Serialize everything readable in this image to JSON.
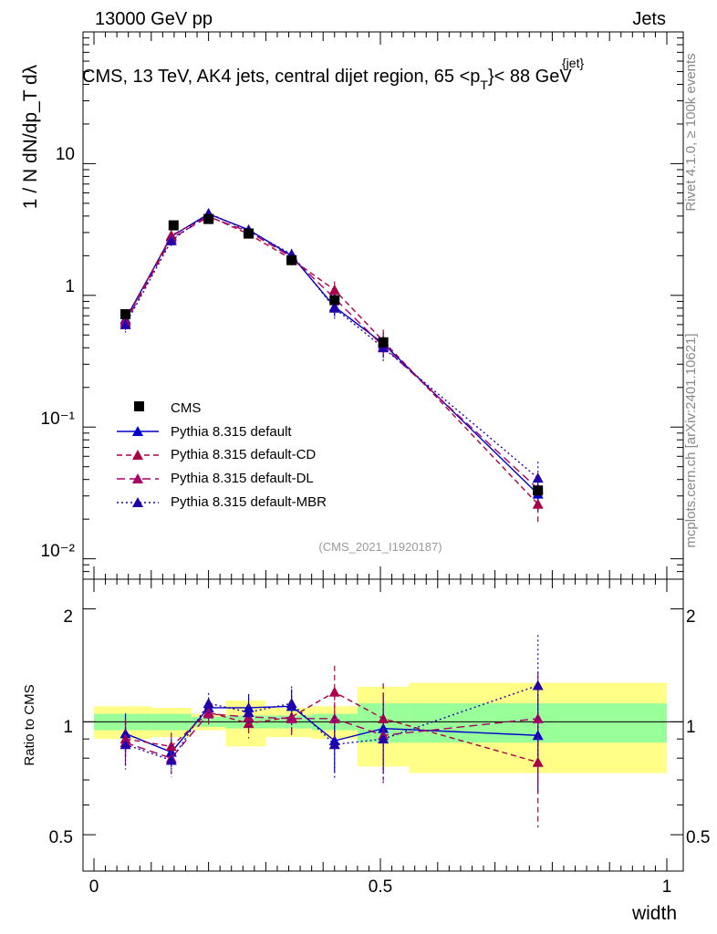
{
  "header": {
    "left": "13000 GeV pp",
    "right": "Jets"
  },
  "plot_title": "CMS, 13 TeV, AK4 jets, central dijet region, 65 <p",
  "plot_title_sup": "{jet}",
  "plot_title_sub": "T",
  "plot_title_tail": "}< 88 GeV",
  "analysis_tag": "(CMS_2021_I1920187)",
  "side_labels": {
    "rivet": "Rivet 4.1.0, ≥ 100k events",
    "mcplots": "mcplots.cern.ch [arXiv:2401.10621]"
  },
  "axes": {
    "main_ylabel": "1 / N  dN/dp_T dλ",
    "ratio_ylabel": "Ratio to CMS",
    "xlabel": "width"
  },
  "legend": {
    "items": [
      {
        "label": "CMS",
        "color": "#000000",
        "marker": "square",
        "dash": "none"
      },
      {
        "label": "Pythia 8.315 default",
        "color": "#0000cc",
        "marker": "triangle",
        "dash": "solid"
      },
      {
        "label": "Pythia 8.315 default-CD",
        "color": "#aa0044",
        "marker": "triangle",
        "dash": "dash"
      },
      {
        "label": "Pythia 8.315 default-DL",
        "color": "#aa0066",
        "marker": "triangle",
        "dash": "longdash"
      },
      {
        "label": "Pythia 8.315 default-MBR",
        "color": "#2200aa",
        "marker": "triangle",
        "dash": "dot"
      }
    ]
  },
  "chart_data": {
    "type": "line",
    "title": "CMS, 13 TeV, AK4 jets, central dijet region, 65 < pT(jet) < 88 GeV",
    "xlabel": "width",
    "ylabel": "1/N dN/dpT dlambda",
    "x": [
      0.055,
      0.135,
      0.2,
      0.27,
      0.345,
      0.42,
      0.505,
      0.775
    ],
    "xlim": [
      0,
      1
    ],
    "ylim": [
      0.007,
      100
    ],
    "yscale": "log",
    "x_ticks": [
      "0",
      "0.5",
      "1"
    ],
    "y_ticks": [
      "10⁻²",
      "10⁻¹",
      "1",
      "10"
    ],
    "ratio_ylim": [
      0.4,
      2.4
    ],
    "ratio_ticks": [
      "0.5",
      "1",
      "2"
    ],
    "bin_edges": [
      0,
      0.1,
      0.17,
      0.23,
      0.3,
      0.38,
      0.46,
      0.55,
      1.0
    ],
    "data": {
      "name": "CMS",
      "values": [
        0.72,
        3.4,
        3.8,
        2.95,
        1.85,
        0.92,
        0.44,
        0.033
      ]
    },
    "band_stat_rel": [
      0.05,
      0.05,
      0.03,
      0.04,
      0.04,
      0.05,
      0.12,
      0.12
    ],
    "band_total_rel": [
      0.1,
      0.09,
      0.05,
      0.14,
      0.09,
      0.1,
      0.24,
      0.27
    ],
    "series": [
      {
        "name": "Pythia 8.315 default",
        "values": [
          0.66,
          2.8,
          4.15,
          3.15,
          2.0,
          0.82,
          0.43,
          0.031
        ],
        "ratio": [
          0.93,
          0.83,
          1.09,
          1.09,
          1.1,
          0.89,
          0.96,
          0.92
        ],
        "err_rel": [
          0.12,
          0.08,
          0.06,
          0.08,
          0.1,
          0.16,
          0.22,
          0.27
        ]
      },
      {
        "name": "Pythia 8.315 default-CD",
        "values": [
          0.64,
          2.85,
          4.0,
          2.92,
          1.88,
          1.1,
          0.45,
          0.026
        ],
        "ratio": [
          0.9,
          0.86,
          1.06,
          0.99,
          1.03,
          1.2,
          1.02,
          0.78
        ],
        "err_rel": [
          0.12,
          0.08,
          0.06,
          0.08,
          0.1,
          0.16,
          0.22,
          0.3
        ]
      },
      {
        "name": "Pythia 8.315 default-DL",
        "values": [
          0.62,
          2.7,
          3.95,
          3.05,
          1.95,
          0.95,
          0.41,
          0.034
        ],
        "ratio": [
          0.88,
          0.8,
          1.05,
          1.03,
          1.02,
          1.02,
          0.92,
          1.02
        ],
        "err_rel": [
          0.12,
          0.08,
          0.06,
          0.08,
          0.1,
          0.16,
          0.22,
          0.3
        ]
      },
      {
        "name": "Pythia 8.315 default-MBR",
        "values": [
          0.6,
          2.6,
          4.2,
          3.1,
          2.05,
          0.8,
          0.4,
          0.041
        ],
        "ratio": [
          0.87,
          0.79,
          1.12,
          1.06,
          1.12,
          0.87,
          0.9,
          1.25
        ],
        "err_rel": [
          0.13,
          0.09,
          0.06,
          0.08,
          0.1,
          0.17,
          0.22,
          0.33
        ]
      }
    ]
  }
}
